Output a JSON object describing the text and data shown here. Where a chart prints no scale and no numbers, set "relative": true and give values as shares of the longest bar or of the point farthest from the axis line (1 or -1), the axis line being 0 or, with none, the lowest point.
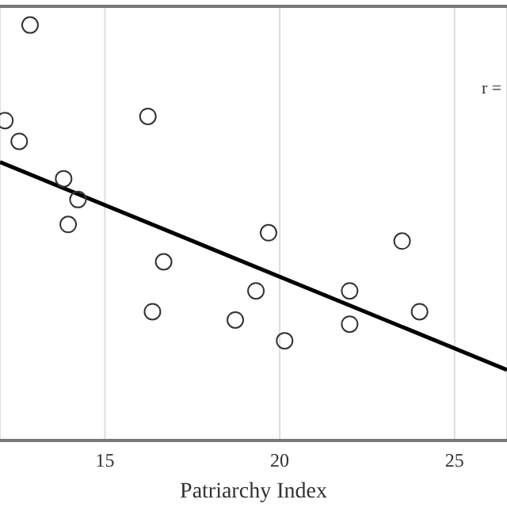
{
  "chart_data": {
    "type": "scatter",
    "xlabel": "Patriarchy Index",
    "annotations": [
      "r ="
    ],
    "xlim": [
      12,
      26.5
    ],
    "xticks": [
      15,
      20,
      25
    ],
    "relative": true,
    "grid": "x",
    "marker": "circle",
    "series": [
      {
        "color": "#333333",
        "x": [
          12.86,
          12.14,
          12.55,
          16.23,
          13.82,
          14.23,
          13.95,
          19.68,
          23.5,
          16.68,
          19.32,
          22.0,
          16.36,
          18.73,
          22.0,
          24.0,
          20.14
        ],
        "values": [
          1.0,
          0.77,
          0.72,
          0.78,
          0.63,
          0.58,
          0.52,
          0.5,
          0.48,
          0.43,
          0.36,
          0.36,
          0.31,
          0.29,
          0.28,
          0.31,
          0.24
        ]
      },
      {
        "type": "line",
        "color": "#000000",
        "marker": "none",
        "x": [
          12,
          26.5
        ],
        "values": [
          0.67,
          0.17
        ]
      }
    ]
  }
}
